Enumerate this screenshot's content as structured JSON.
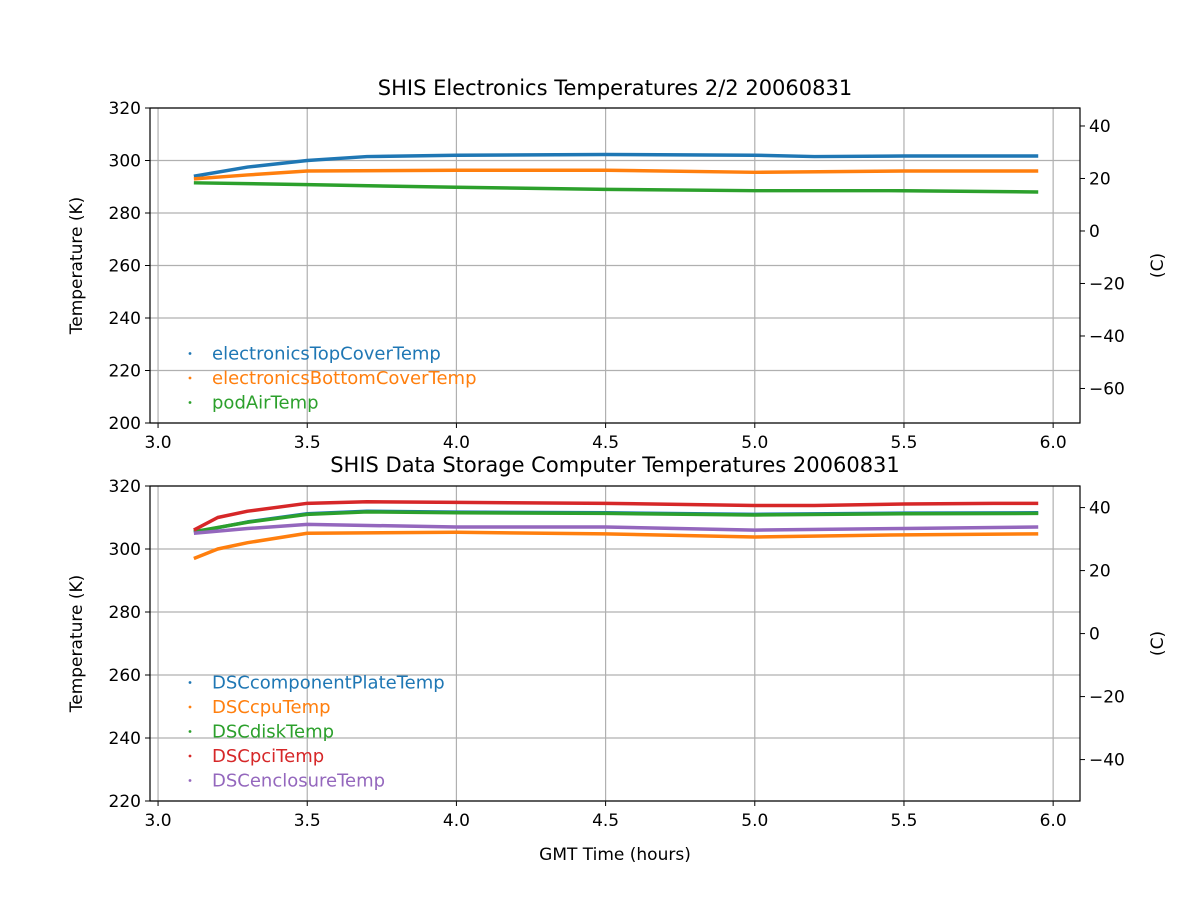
{
  "chart_data": [
    {
      "type": "line",
      "title": "SHIS Electronics Temperatures 2/2 20060831",
      "xlabel": "",
      "ylabel": "Temperature (K)",
      "y2label": "(C)",
      "xlim": [
        2.973,
        6.09
      ],
      "ylim": [
        200,
        320
      ],
      "xticks": [
        "3.0",
        "3.5",
        "4.0",
        "4.5",
        "5.0",
        "5.5",
        "6.0"
      ],
      "yticks": [
        "200",
        "220",
        "240",
        "260",
        "280",
        "300",
        "320"
      ],
      "y2ticks": [
        "−60",
        "−40",
        "−20",
        "0",
        "20",
        "40"
      ],
      "grid": true,
      "legend": "lower-left",
      "series": [
        {
          "name": "electronicsTopCoverTemp",
          "color": "#1f77b4",
          "x": [
            3.12,
            3.3,
            3.5,
            3.7,
            4.0,
            4.5,
            5.0,
            5.2,
            5.5,
            5.95
          ],
          "y": [
            294,
            297.5,
            300,
            301.5,
            302,
            302.3,
            302,
            301.5,
            301.7,
            301.7
          ]
        },
        {
          "name": "electronicsBottomCoverTemp",
          "color": "#ff7f0e",
          "x": [
            3.12,
            3.3,
            3.5,
            4.0,
            4.5,
            5.0,
            5.5,
            5.95
          ],
          "y": [
            293,
            294.5,
            296,
            296.3,
            296.3,
            295.5,
            296,
            296
          ]
        },
        {
          "name": "podAirTemp",
          "color": "#2ca02c",
          "x": [
            3.12,
            3.5,
            4.0,
            4.5,
            5.0,
            5.5,
            5.95
          ],
          "y": [
            291.5,
            290.8,
            289.8,
            289,
            288.5,
            288.5,
            288
          ]
        }
      ]
    },
    {
      "type": "line",
      "title": "SHIS Data Storage Computer Temperatures 20060831",
      "xlabel": "GMT Time (hours)",
      "ylabel": "Temperature (K)",
      "y2label": "(C)",
      "xlim": [
        2.973,
        6.09
      ],
      "ylim": [
        220,
        320
      ],
      "xticks": [
        "3.0",
        "3.5",
        "4.0",
        "4.5",
        "5.0",
        "5.5",
        "6.0"
      ],
      "yticks": [
        "220",
        "240",
        "260",
        "280",
        "300",
        "320"
      ],
      "y2ticks": [
        "−40",
        "−20",
        "0",
        "20",
        "40"
      ],
      "grid": true,
      "legend": "lower-left",
      "series": [
        {
          "name": "DSCcomponentPlateTemp",
          "color": "#1f77b4",
          "x": [
            3.12,
            3.3,
            3.5,
            3.7,
            4.0,
            4.5,
            5.0,
            5.5,
            5.95
          ],
          "y": [
            305.3,
            308.6,
            311.2,
            312,
            311.7,
            311.5,
            311,
            311.4,
            311.5
          ]
        },
        {
          "name": "DSCcpuTemp",
          "color": "#ff7f0e",
          "x": [
            3.12,
            3.2,
            3.3,
            3.5,
            4.0,
            4.5,
            5.0,
            5.5,
            5.95
          ],
          "y": [
            297,
            300,
            302,
            305,
            305.3,
            304.8,
            303.8,
            304.5,
            304.8
          ]
        },
        {
          "name": "DSCdiskTemp",
          "color": "#2ca02c",
          "x": [
            3.12,
            3.3,
            3.5,
            3.7,
            4.0,
            4.5,
            5.0,
            5.5,
            5.95
          ],
          "y": [
            305.5,
            308.5,
            311,
            311.8,
            311.5,
            311.3,
            310.8,
            311.2,
            311.3
          ]
        },
        {
          "name": "DSCpciTemp",
          "color": "#d62728",
          "x": [
            3.12,
            3.2,
            3.3,
            3.5,
            3.7,
            4.0,
            4.5,
            5.0,
            5.2,
            5.5,
            5.8,
            5.95
          ],
          "y": [
            306,
            310,
            312,
            314.5,
            315,
            314.8,
            314.5,
            313.8,
            313.8,
            314.3,
            314.5,
            314.5
          ]
        },
        {
          "name": "DSCenclosureTemp",
          "color": "#9467bd",
          "x": [
            3.12,
            3.3,
            3.5,
            4.0,
            4.5,
            5.0,
            5.5,
            5.95
          ],
          "y": [
            305,
            306.5,
            307.8,
            307,
            307,
            306,
            306.5,
            307
          ]
        }
      ]
    }
  ]
}
